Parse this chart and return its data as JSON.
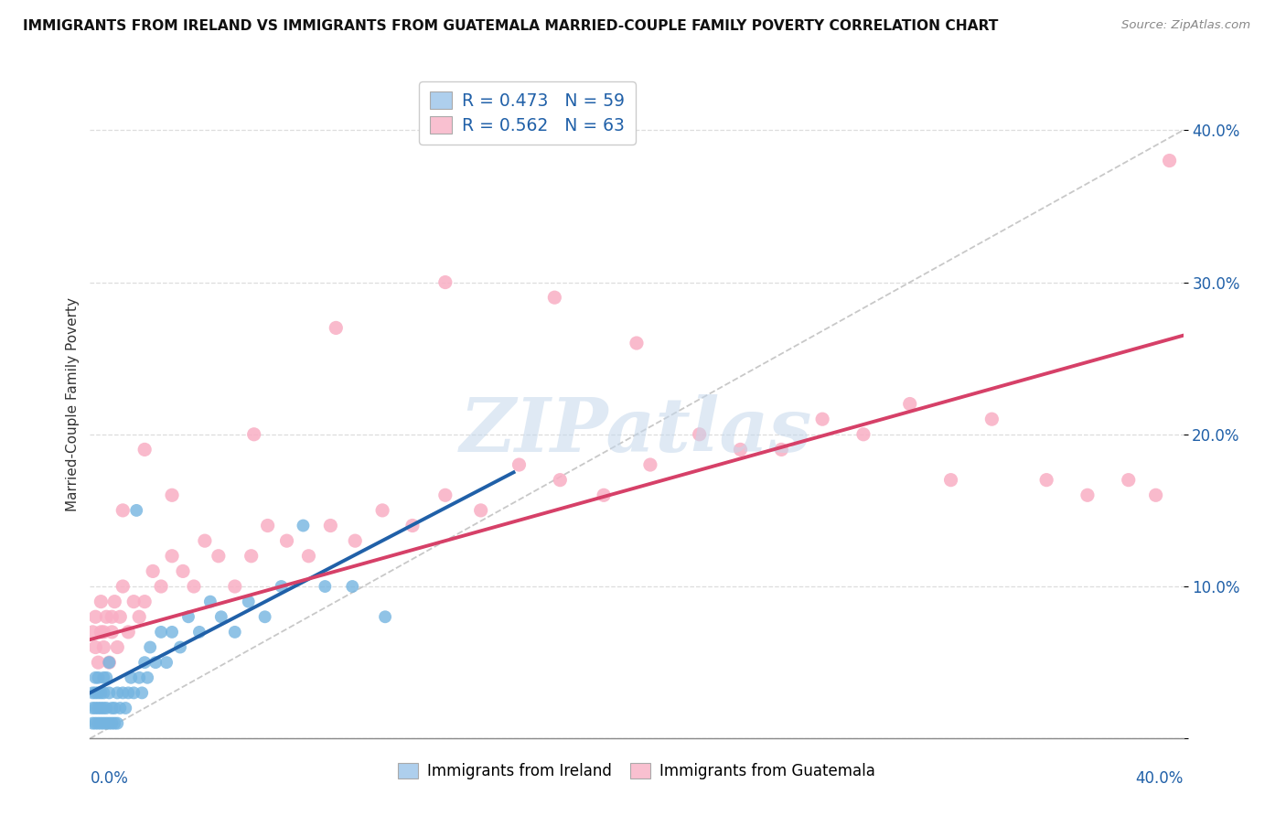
{
  "title": "IMMIGRANTS FROM IRELAND VS IMMIGRANTS FROM GUATEMALA MARRIED-COUPLE FAMILY POVERTY CORRELATION CHART",
  "source": "Source: ZipAtlas.com",
  "ylabel": "Married-Couple Family Poverty",
  "ylabel_tick_vals": [
    0.0,
    0.1,
    0.2,
    0.3,
    0.4
  ],
  "ylabel_tick_labels": [
    "",
    "10.0%",
    "20.0%",
    "30.0%",
    "40.0%"
  ],
  "xmin": 0.0,
  "xmax": 0.4,
  "ymin": 0.0,
  "ymax": 0.44,
  "ireland_R": "0.473",
  "ireland_N": "59",
  "guatemala_R": "0.562",
  "guatemala_N": "63",
  "ireland_dot_color": "#74b4e0",
  "guatemala_dot_color": "#f9aec4",
  "ireland_legend_color": "#aecfed",
  "guatemala_legend_color": "#f9c0d0",
  "regline_ireland_color": "#2060a8",
  "regline_guatemala_color": "#d64068",
  "legend_text_color": "#2060a8",
  "watermark_color": "#c5d8ec",
  "diag_color": "#bbbbbb",
  "grid_color": "#dddddd",
  "ireland_x": [
    0.001,
    0.001,
    0.001,
    0.002,
    0.002,
    0.002,
    0.002,
    0.003,
    0.003,
    0.003,
    0.003,
    0.004,
    0.004,
    0.004,
    0.005,
    0.005,
    0.005,
    0.005,
    0.006,
    0.006,
    0.006,
    0.007,
    0.007,
    0.007,
    0.008,
    0.008,
    0.009,
    0.009,
    0.01,
    0.01,
    0.011,
    0.012,
    0.013,
    0.014,
    0.015,
    0.016,
    0.017,
    0.018,
    0.019,
    0.02,
    0.021,
    0.022,
    0.024,
    0.026,
    0.028,
    0.03,
    0.033,
    0.036,
    0.04,
    0.044,
    0.048,
    0.053,
    0.058,
    0.064,
    0.07,
    0.078,
    0.086,
    0.096,
    0.108
  ],
  "ireland_y": [
    0.01,
    0.02,
    0.03,
    0.01,
    0.02,
    0.03,
    0.04,
    0.01,
    0.02,
    0.03,
    0.04,
    0.01,
    0.02,
    0.03,
    0.01,
    0.02,
    0.03,
    0.04,
    0.01,
    0.02,
    0.04,
    0.01,
    0.03,
    0.05,
    0.01,
    0.02,
    0.01,
    0.02,
    0.01,
    0.03,
    0.02,
    0.03,
    0.02,
    0.03,
    0.04,
    0.03,
    0.15,
    0.04,
    0.03,
    0.05,
    0.04,
    0.06,
    0.05,
    0.07,
    0.05,
    0.07,
    0.06,
    0.08,
    0.07,
    0.09,
    0.08,
    0.07,
    0.09,
    0.08,
    0.1,
    0.14,
    0.1,
    0.1,
    0.08
  ],
  "ireland_regline_x": [
    0.0,
    0.155
  ],
  "ireland_regline_y": [
    0.03,
    0.175
  ],
  "guatemala_x": [
    0.001,
    0.002,
    0.002,
    0.003,
    0.004,
    0.004,
    0.005,
    0.006,
    0.007,
    0.008,
    0.009,
    0.01,
    0.011,
    0.012,
    0.014,
    0.016,
    0.018,
    0.02,
    0.023,
    0.026,
    0.03,
    0.034,
    0.038,
    0.042,
    0.047,
    0.053,
    0.059,
    0.065,
    0.072,
    0.08,
    0.088,
    0.097,
    0.107,
    0.118,
    0.13,
    0.143,
    0.157,
    0.172,
    0.188,
    0.205,
    0.223,
    0.238,
    0.253,
    0.268,
    0.283,
    0.3,
    0.315,
    0.33,
    0.35,
    0.365,
    0.38,
    0.39,
    0.395,
    0.005,
    0.008,
    0.012,
    0.02,
    0.03,
    0.06,
    0.09,
    0.13,
    0.17,
    0.2
  ],
  "guatemala_y": [
    0.07,
    0.06,
    0.08,
    0.05,
    0.07,
    0.09,
    0.06,
    0.08,
    0.05,
    0.07,
    0.09,
    0.06,
    0.08,
    0.1,
    0.07,
    0.09,
    0.08,
    0.09,
    0.11,
    0.1,
    0.12,
    0.11,
    0.1,
    0.13,
    0.12,
    0.1,
    0.12,
    0.14,
    0.13,
    0.12,
    0.14,
    0.13,
    0.15,
    0.14,
    0.16,
    0.15,
    0.18,
    0.17,
    0.16,
    0.18,
    0.2,
    0.19,
    0.19,
    0.21,
    0.2,
    0.22,
    0.17,
    0.21,
    0.17,
    0.16,
    0.17,
    0.16,
    0.38,
    0.07,
    0.08,
    0.15,
    0.19,
    0.16,
    0.2,
    0.27,
    0.3,
    0.29,
    0.26
  ],
  "guatemala_regline_x": [
    0.0,
    0.4
  ],
  "guatemala_regline_y": [
    0.065,
    0.265
  ]
}
